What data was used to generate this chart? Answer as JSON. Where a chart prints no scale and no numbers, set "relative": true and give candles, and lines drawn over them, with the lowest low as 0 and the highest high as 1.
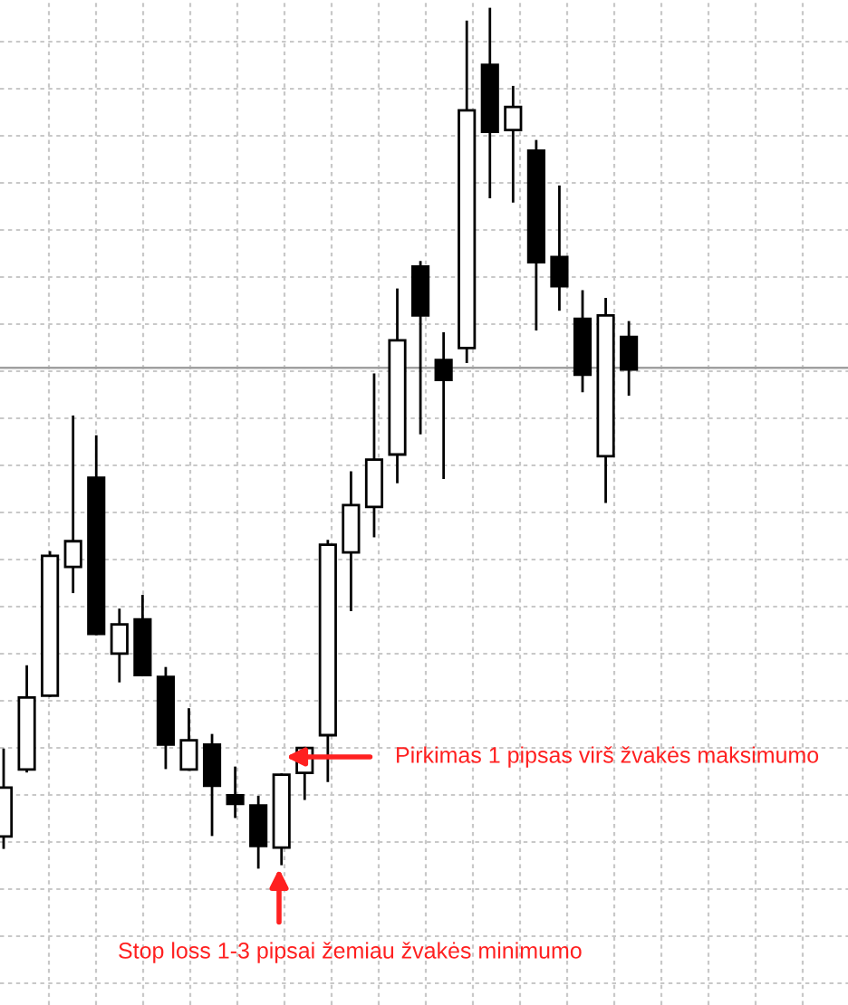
{
  "chart_data": {
    "type": "candlestick",
    "relative": true,
    "grid": true,
    "categories": [
      null,
      null,
      null,
      null,
      null,
      null,
      null,
      null,
      null,
      null,
      null,
      null,
      null,
      null,
      null,
      null,
      null,
      null,
      null,
      null,
      null,
      null,
      null,
      null,
      null,
      null,
      null,
      null
    ],
    "ohlc": [
      [
        0.036,
        0.137,
        0.023,
        0.093
      ],
      [
        0.114,
        0.234,
        0.112,
        0.198
      ],
      [
        0.2,
        0.367,
        0.2,
        0.363
      ],
      [
        0.35,
        0.525,
        0.321,
        0.38
      ],
      [
        0.454,
        0.502,
        0.272,
        0.272
      ],
      [
        0.249,
        0.3,
        0.217,
        0.283
      ],
      [
        0.289,
        0.316,
        0.224,
        0.224
      ],
      [
        0.222,
        0.232,
        0.116,
        0.143
      ],
      [
        0.114,
        0.184,
        0.114,
        0.148
      ],
      [
        0.143,
        0.154,
        0.038,
        0.095
      ],
      [
        0.084,
        0.116,
        0.059,
        0.074
      ],
      [
        0.072,
        0.082,
        0.0,
        0.025
      ],
      [
        0.023,
        0.108,
        0.004,
        0.108
      ],
      [
        0.11,
        0.139,
        0.08,
        0.139
      ],
      [
        0.154,
        0.38,
        0.101,
        0.376
      ],
      [
        0.367,
        0.46,
        0.3,
        0.422
      ],
      [
        0.42,
        0.574,
        0.386,
        0.475
      ],
      [
        0.481,
        0.673,
        0.449,
        0.614
      ],
      [
        0.7,
        0.705,
        0.506,
        0.643
      ],
      [
        0.591,
        0.622,
        0.454,
        0.568
      ],
      [
        0.605,
        0.985,
        0.589,
        0.882
      ],
      [
        0.935,
        1.0,
        0.781,
        0.857
      ],
      [
        0.859,
        0.909,
        0.776,
        0.886
      ],
      [
        0.835,
        0.846,
        0.627,
        0.705
      ],
      [
        0.711,
        0.793,
        0.65,
        0.677
      ],
      [
        0.639,
        0.671,
        0.555,
        0.574
      ],
      [
        0.479,
        0.662,
        0.426,
        0.643
      ],
      [
        0.618,
        0.635,
        0.551,
        0.58
      ]
    ],
    "ref_lines": [
      {
        "axis": "y",
        "value": 0.582,
        "color": "#a0a0a0"
      }
    ],
    "annotations": [
      "Pirkimas 1 pipsas virš žvakės maksimumo",
      "Stop loss 1-3 pipsai žemiau žvakės minimumo"
    ]
  }
}
